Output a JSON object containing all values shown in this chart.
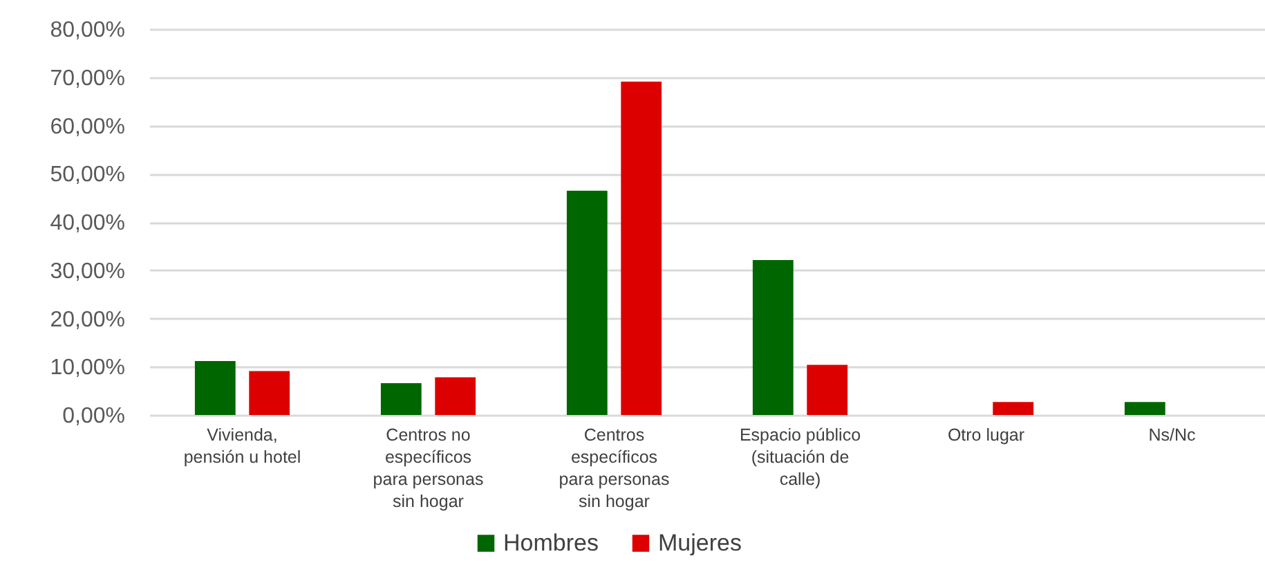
{
  "chart_data": {
    "type": "bar",
    "categories": [
      "Vivienda, pensión u hotel",
      "Centros no específicos para personas sin hogar",
      "Centros específicos para personas sin hogar",
      "Espacio público (situación de calle)",
      "Otro lugar",
      "Ns/Nc"
    ],
    "series": [
      {
        "name": "Hombres",
        "color": "#006600",
        "values": [
          11.2,
          6.6,
          46.5,
          32.1,
          null,
          2.7
        ]
      },
      {
        "name": "Mujeres",
        "color": "#dd0000",
        "values": [
          9.1,
          7.8,
          69.1,
          10.4,
          2.7,
          null
        ]
      }
    ],
    "ylim": [
      0,
      80
    ],
    "yticks": [
      {
        "value": 0,
        "label": "0,00%"
      },
      {
        "value": 10,
        "label": "10,00%"
      },
      {
        "value": 20,
        "label": "20,00%"
      },
      {
        "value": 30,
        "label": "30,00%"
      },
      {
        "value": 40,
        "label": "40,00%"
      },
      {
        "value": 50,
        "label": "50,00%"
      },
      {
        "value": 60,
        "label": "60,00%"
      },
      {
        "value": 70,
        "label": "70,00%"
      },
      {
        "value": 80,
        "label": "80,00%"
      }
    ],
    "grid": "y",
    "legend": "bottom"
  }
}
